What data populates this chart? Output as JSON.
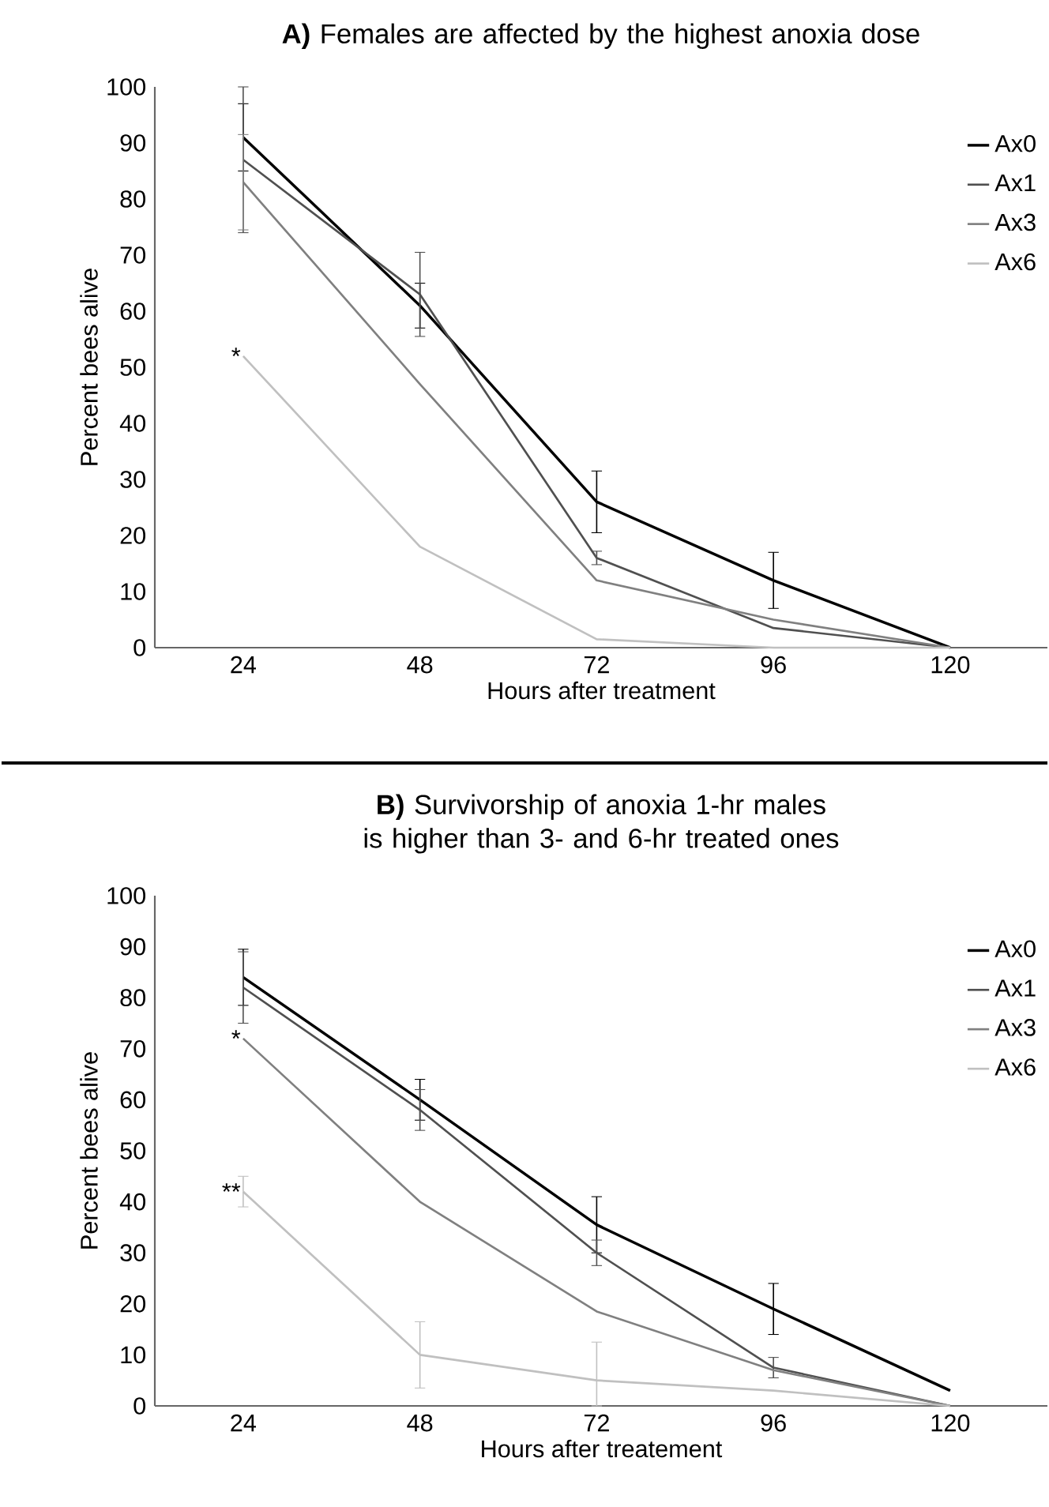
{
  "chart_data": [
    {
      "type": "line",
      "title": "**A)** Females are affected by the highest anoxia dose",
      "xlabel": "Hours after treatment",
      "ylabel": "Percent bees alive",
      "categories": [
        "24",
        "48",
        "72",
        "96",
        "120"
      ],
      "ylim": [
        0,
        100
      ],
      "yticks": [
        0,
        10,
        20,
        30,
        40,
        50,
        60,
        70,
        80,
        90,
        100
      ],
      "legend": "top right",
      "grid": false,
      "marker": "none",
      "line_style": "solid",
      "series": [
        {
          "name": "Ax0",
          "color": "#000000",
          "values": [
            91,
            61,
            26,
            12,
            0
          ],
          "errors": [
            6,
            4,
            5.5,
            5,
            null
          ]
        },
        {
          "name": "Ax1",
          "color": "#505050",
          "values": [
            87,
            63,
            16,
            3.5,
            0
          ],
          "errors": [
            13,
            7.5,
            1.2,
            null,
            null
          ]
        },
        {
          "name": "Ax3",
          "color": "#808080",
          "values": [
            83,
            47,
            12,
            5,
            0
          ],
          "errors": [
            8.5,
            null,
            null,
            null,
            null
          ]
        },
        {
          "name": "Ax6",
          "color": "#c0c0c0",
          "values": [
            52,
            18,
            1.5,
            0,
            0
          ]
        }
      ],
      "annotations": [
        {
          "text": "*",
          "x": "24",
          "y": 52
        }
      ]
    },
    {
      "type": "line",
      "title": "**B)** Survivorship of anoxia 1-hr males is higher than 3- and 6-hr treated ones",
      "xlabel": "Hours after treatement",
      "ylabel": "Percent bees alive",
      "categories": [
        "24",
        "48",
        "72",
        "96",
        "120"
      ],
      "ylim": [
        0,
        100
      ],
      "yticks": [
        0,
        10,
        20,
        30,
        40,
        50,
        60,
        70,
        80,
        90,
        100
      ],
      "legend": "top right",
      "grid": false,
      "marker": "none",
      "line_style": "solid",
      "series": [
        {
          "name": "Ax0",
          "color": "#000000",
          "values": [
            84,
            60,
            35.5,
            19,
            3
          ],
          "errors": [
            5.5,
            4,
            5.5,
            5,
            null
          ]
        },
        {
          "name": "Ax1",
          "color": "#505050",
          "values": [
            82,
            58,
            30,
            7.5,
            0
          ],
          "errors": [
            7,
            4,
            2.5,
            2,
            null
          ]
        },
        {
          "name": "Ax3",
          "color": "#808080",
          "values": [
            72,
            40,
            18.5,
            7,
            0
          ]
        },
        {
          "name": "Ax6",
          "color": "#c0c0c0",
          "values": [
            42,
            10,
            5,
            3,
            0
          ],
          "errors": [
            3,
            6.5,
            [
              0,
              12.5
            ],
            null,
            null
          ]
        }
      ],
      "annotations": [
        {
          "text": "*",
          "x": "24",
          "y": 72
        },
        {
          "text": "**",
          "x": "24",
          "y": 42
        }
      ]
    }
  ]
}
